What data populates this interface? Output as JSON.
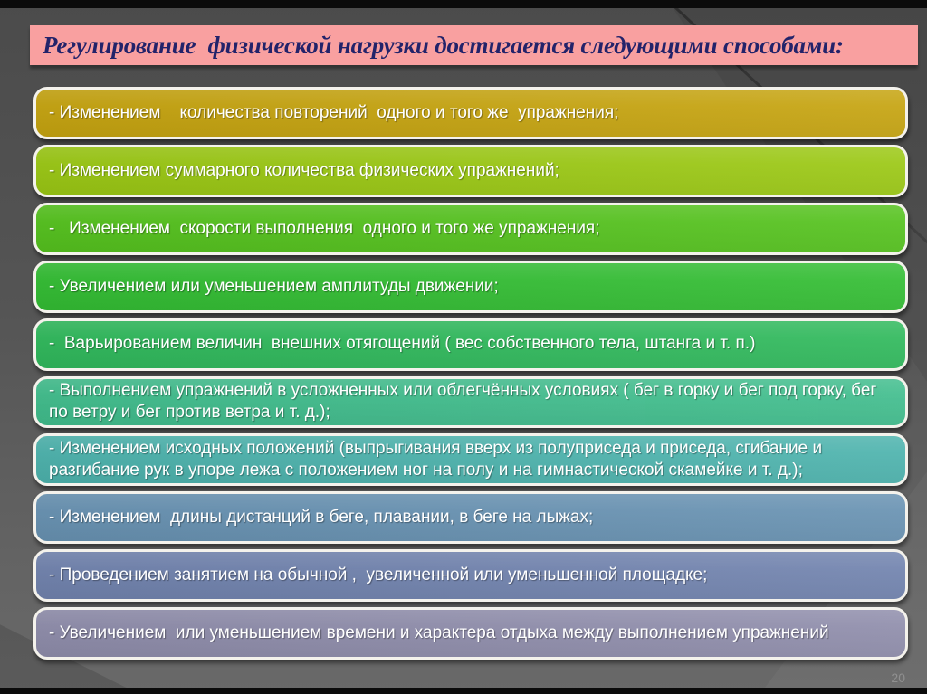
{
  "slide": {
    "title": "Регулирование  физической нагрузки достигается следующими способами:",
    "page_number": "20",
    "colors": {
      "background_top": "#4b4b4b",
      "background_bottom": "#696969",
      "title_bar_bg": "#f9a0a0",
      "title_text": "#23236a",
      "item_border": "#f4f2ec",
      "item_text": "#ffffff",
      "page_number_text": "#909090"
    },
    "items": [
      {
        "text": "- Изменением    количества повторений  одного и того же  упражнения;",
        "color": "#c6a410"
      },
      {
        "text": "- Изменением суммарного количества физических упражнений;",
        "color": "#9bc814"
      },
      {
        "text": "-   Изменением  скорости выполнения  одного и того же упражнения;",
        "color": "#55c21e"
      },
      {
        "text": "- Увеличением или уменьшением амплитуды движении;",
        "color": "#33bd33"
      },
      {
        "text": "-  Варьированием величин  внешних отягощений ( вес собственного тела, штанга и т. п.)",
        "color": "#30b95c"
      },
      {
        "text": "- Выполнением упражнений в усложненных или облегчённых условиях ( бег в горку и бег под горку, бег по ветру и бег против ветра и т. д.);",
        "color": "#41bd8d"
      },
      {
        "text": "- Изменением исходных положений (выпрыгивания вверх из полуприседа и приседа, сгибание и разгибание рук в упоре лежа с положением ног на полу и на гимнастической скамейке и т. д.);",
        "color": "#4db3ad"
      },
      {
        "text": "- Изменением  длины дистанций в беге, плавании, в беге на лыжах;",
        "color": "#6892b2"
      },
      {
        "text": "- Проведением занятием на обычной ,  увеличенной или уменьшенной площадке;",
        "color": "#7183ae"
      },
      {
        "text": "- Увеличением  или уменьшением времени и характера отдыха между выполнением упражнений",
        "color": "#8f8dab"
      }
    ]
  }
}
